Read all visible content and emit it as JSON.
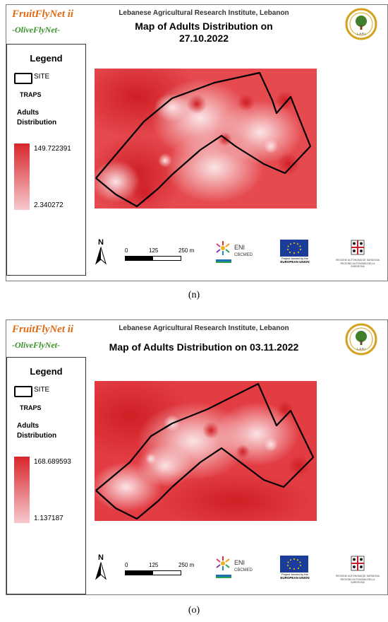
{
  "figures": [
    {
      "brand_line1": "FruitFlyNet ii",
      "brand_line2": "-OliveFlyNet-",
      "institute": "Lebanese Agricultural Research Institute, Lebanon",
      "title_line1": "Map of Adults Distribution on",
      "title_line2": "27.10.2022",
      "legend": {
        "title": "Legend",
        "site": "SITE",
        "traps": "TRAPS",
        "adults_line1": "Adults",
        "adults_line2": "Distribution",
        "max": "149.722391",
        "min": "2.340272"
      },
      "north": "N",
      "scale": {
        "zero": "0",
        "mid": "125",
        "end": "250 m"
      },
      "caption": "(n)"
    },
    {
      "brand_line1": "FruitFlyNet ii",
      "brand_line2": "-OliveFlyNet-",
      "institute": "Lebanese Agricultural Research Institute, Lebanon",
      "title_line1": "Map of Adults Distribution on 03.11.2022",
      "title_line2": "",
      "legend": {
        "title": "Legend",
        "site": "SITE",
        "traps": "TRAPS",
        "adults_line1": "Adults",
        "adults_line2": "Distribution",
        "max": "168.689593",
        "min": "1.137187"
      },
      "north": "N",
      "scale": {
        "zero": "0",
        "mid": "125",
        "end": "250 m"
      },
      "caption": "(o)"
    }
  ],
  "logos": {
    "eni": "ENI",
    "cbcmed": "CBCMED",
    "eu_line1": "Project funded by the",
    "eu_line2": "EUROPEAN UNION",
    "sard_line1": "REGIONE AUTONOMA DE SARDIGNA",
    "sard_line2": "REGIONE AUTONOMA DELLA SARDEGNA",
    "lari": "L.A.R.I"
  },
  "colors": {
    "high": "#d7262b",
    "low": "#f6c9ce",
    "brand_orange": "#e06a12",
    "brand_green": "#3a8f2a"
  }
}
